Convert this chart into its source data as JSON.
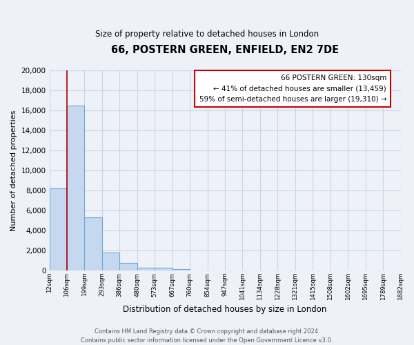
{
  "title": "66, POSTERN GREEN, ENFIELD, EN2 7DE",
  "subtitle": "Size of property relative to detached houses in London",
  "xlabel": "Distribution of detached houses by size in London",
  "ylabel": "Number of detached properties",
  "bar_values": [
    8200,
    16500,
    5300,
    1800,
    750,
    280,
    280,
    150,
    0,
    0,
    0,
    0,
    0,
    0,
    0,
    0,
    0,
    0,
    0,
    0
  ],
  "x_labels": [
    "12sqm",
    "106sqm",
    "199sqm",
    "293sqm",
    "386sqm",
    "480sqm",
    "573sqm",
    "667sqm",
    "760sqm",
    "854sqm",
    "947sqm",
    "1041sqm",
    "1134sqm",
    "1228sqm",
    "1321sqm",
    "1415sqm",
    "1508sqm",
    "1602sqm",
    "1695sqm",
    "1789sqm",
    "1882sqm"
  ],
  "bar_color": "#c5d8f0",
  "bar_edge_color": "#6fa8d4",
  "vline_color": "#aa0000",
  "ylim": [
    0,
    20000
  ],
  "yticks": [
    0,
    2000,
    4000,
    6000,
    8000,
    10000,
    12000,
    14000,
    16000,
    18000,
    20000
  ],
  "annotation_title": "66 POSTERN GREEN: 130sqm",
  "annotation_line1": "← 41% of detached houses are smaller (13,459)",
  "annotation_line2": "59% of semi-detached houses are larger (19,310) →",
  "annotation_box_color": "#ffffff",
  "annotation_box_edge": "#cc0000",
  "footer1": "Contains HM Land Registry data © Crown copyright and database right 2024.",
  "footer2": "Contains public sector information licensed under the Open Government Licence v3.0.",
  "background_color": "#eef2f8",
  "plot_background": "#eef2f8",
  "grid_color": "#c8d4e8"
}
